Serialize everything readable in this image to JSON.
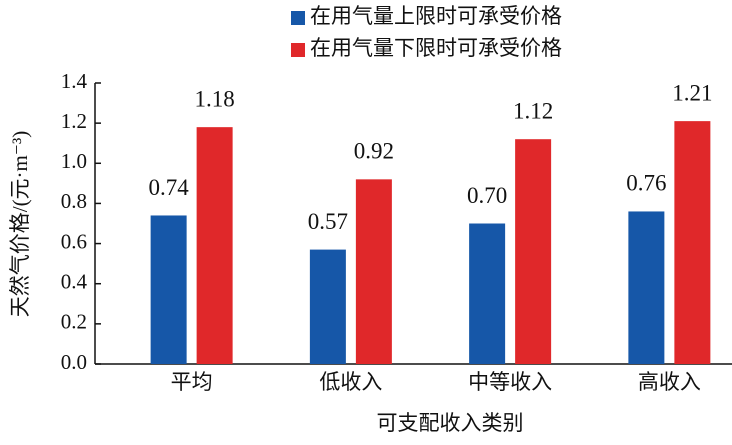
{
  "chart_data": {
    "type": "bar",
    "x_label": "可支配收入类别",
    "y_label": "天然气价格/(元·m⁻³)",
    "categories": [
      "平均",
      "低收入",
      "中等收入",
      "高收入"
    ],
    "series": [
      {
        "name": "在用气量上限时可承受价格",
        "color": "#1657a8",
        "values": [
          0.74,
          0.57,
          0.7,
          0.76
        ],
        "value_labels": [
          "0.74",
          "0.57",
          "0.70",
          "0.76"
        ]
      },
      {
        "name": "在用气量下限时可承受价格",
        "color": "#e0282a",
        "values": [
          1.18,
          0.92,
          1.12,
          1.21
        ],
        "value_labels": [
          "1.18",
          "0.92",
          "1.12",
          "1.21"
        ]
      }
    ],
    "ylim": [
      0,
      1.4
    ],
    "yticks": [
      {
        "value": 0,
        "label": "0.0"
      },
      {
        "value": 0.2,
        "label": "0.2"
      },
      {
        "value": 0.4,
        "label": "0.4"
      },
      {
        "value": 0.6,
        "label": "0.6"
      },
      {
        "value": 0.8,
        "label": "0.8"
      },
      {
        "value": 1.0,
        "label": "1.0"
      },
      {
        "value": 1.2,
        "label": "1.2"
      },
      {
        "value": 1.4,
        "label": "1.4"
      }
    ],
    "legend": "top"
  }
}
